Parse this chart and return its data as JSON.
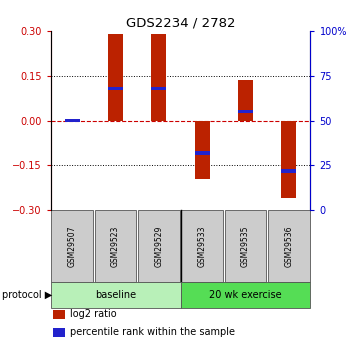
{
  "title": "GDS2234 / 2782",
  "samples": [
    "GSM29507",
    "GSM29523",
    "GSM29529",
    "GSM29533",
    "GSM29535",
    "GSM29536"
  ],
  "log2_ratios": [
    0.0,
    0.29,
    0.29,
    -0.195,
    0.135,
    -0.26
  ],
  "percentile_ranks": [
    0.5,
    0.68,
    0.68,
    0.32,
    0.55,
    0.22
  ],
  "bar_color": "#bb2200",
  "pct_color": "#2222cc",
  "ylim": [
    -0.3,
    0.3
  ],
  "yticks_left": [
    -0.3,
    -0.15,
    0,
    0.15,
    0.3
  ],
  "yticks_right": [
    0,
    25,
    50,
    75,
    100
  ],
  "ytick_right_labels": [
    "0",
    "25",
    "50",
    "75",
    "100%"
  ],
  "group_colors": [
    "#b8f0b8",
    "#55dd55"
  ],
  "group_labels": [
    "baseline",
    "20 wk exercise"
  ],
  "group_split": 3,
  "protocol_label": "protocol",
  "legend_items": [
    {
      "color": "#bb2200",
      "label": "log2 ratio"
    },
    {
      "color": "#2222cc",
      "label": "percentile rank within the sample"
    }
  ],
  "bar_width": 0.35
}
